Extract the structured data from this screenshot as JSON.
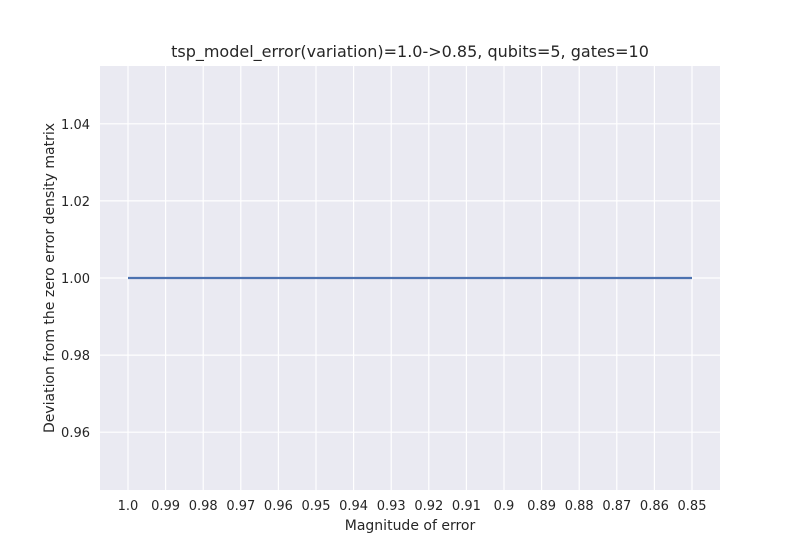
{
  "chart_data": {
    "type": "line",
    "title": "tsp_model_error(variation)=1.0->0.85, qubits=5, gates=10",
    "xlabel": "Magnitude of error",
    "ylabel": "Deviation from the zero error density matrix",
    "categories": [
      "1.0",
      "0.99",
      "0.98",
      "0.97",
      "0.96",
      "0.95",
      "0.94",
      "0.93",
      "0.92",
      "0.91",
      "0.9",
      "0.89",
      "0.88",
      "0.87",
      "0.86",
      "0.85"
    ],
    "series": [
      {
        "values": [
          1.0,
          1.0,
          1.0,
          1.0,
          1.0,
          1.0,
          1.0,
          1.0,
          1.0,
          1.0,
          1.0,
          1.0,
          1.0,
          1.0,
          1.0,
          1.0
        ],
        "color": "#4c72b0"
      }
    ],
    "ylim": [
      0.945,
      1.055
    ],
    "yticks": [
      0.96,
      0.98,
      1.0,
      1.02,
      1.04
    ],
    "ytick_labels": [
      "0.96",
      "0.98",
      "1.00",
      "1.02",
      "1.04"
    ],
    "grid": true,
    "background": "#eaeaf2",
    "grid_color": "#ffffff"
  }
}
